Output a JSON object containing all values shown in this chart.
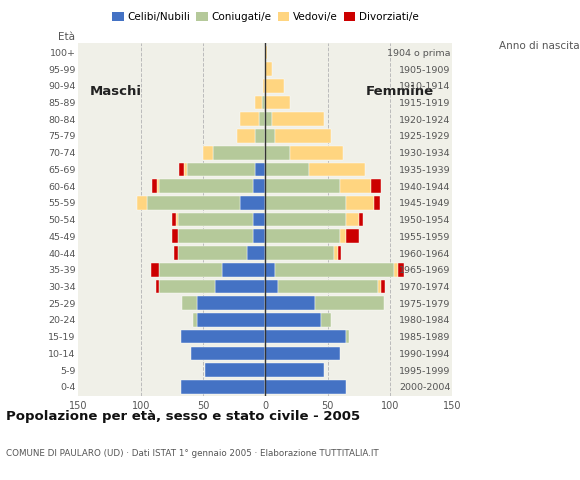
{
  "age_groups": [
    "0-4",
    "5-9",
    "10-14",
    "15-19",
    "20-24",
    "25-29",
    "30-34",
    "35-39",
    "40-44",
    "45-49",
    "50-54",
    "55-59",
    "60-64",
    "65-69",
    "70-74",
    "75-79",
    "80-84",
    "85-89",
    "90-94",
    "95-99",
    "100+"
  ],
  "birth_years": [
    "2000-2004",
    "1995-1999",
    "1990-1994",
    "1985-1989",
    "1980-1984",
    "1975-1979",
    "1970-1974",
    "1965-1969",
    "1960-1964",
    "1955-1959",
    "1950-1954",
    "1945-1949",
    "1940-1944",
    "1935-1939",
    "1930-1934",
    "1925-1929",
    "1920-1924",
    "1915-1919",
    "1910-1914",
    "1905-1909",
    "1904 o prima"
  ],
  "colors": {
    "celibi": "#4472C4",
    "coniugati": "#B5C99A",
    "vedovi": "#FFD580",
    "divorziati": "#CC0000"
  },
  "m_celibi": [
    68,
    48,
    60,
    68,
    55,
    55,
    40,
    35,
    15,
    10,
    10,
    20,
    10,
    8,
    0,
    0,
    0,
    0,
    0,
    0,
    0
  ],
  "m_coniugati": [
    0,
    0,
    0,
    0,
    3,
    12,
    45,
    50,
    55,
    60,
    60,
    75,
    75,
    55,
    42,
    8,
    5,
    3,
    0,
    0,
    0
  ],
  "m_vedovi": [
    0,
    0,
    0,
    0,
    0,
    0,
    0,
    0,
    0,
    0,
    2,
    8,
    2,
    2,
    8,
    15,
    15,
    5,
    2,
    0,
    0
  ],
  "m_divorziati": [
    0,
    0,
    0,
    0,
    0,
    0,
    3,
    7,
    3,
    5,
    3,
    0,
    4,
    4,
    0,
    0,
    0,
    0,
    0,
    0,
    0
  ],
  "f_celibi": [
    65,
    47,
    60,
    65,
    45,
    40,
    10,
    8,
    0,
    0,
    0,
    0,
    0,
    0,
    0,
    0,
    0,
    0,
    0,
    0,
    0
  ],
  "f_coniugati": [
    0,
    0,
    0,
    2,
    8,
    55,
    80,
    95,
    55,
    60,
    65,
    65,
    60,
    35,
    20,
    8,
    5,
    0,
    0,
    0,
    0
  ],
  "f_vedovi": [
    0,
    0,
    0,
    0,
    0,
    0,
    3,
    3,
    3,
    5,
    10,
    22,
    25,
    45,
    42,
    45,
    42,
    20,
    15,
    5,
    1
  ],
  "f_divorziati": [
    0,
    0,
    0,
    0,
    0,
    0,
    3,
    5,
    3,
    10,
    3,
    5,
    8,
    0,
    0,
    0,
    0,
    0,
    0,
    0,
    0
  ],
  "title": "Popolazione per età, sesso e stato civile - 2005",
  "subtitle": "COMUNE DI PAULARO (UD) · Dati ISTAT 1° gennaio 2005 · Elaborazione TUTTITALIA.IT",
  "xlim": 150,
  "plot_bg": "#F0F0E8",
  "fig_bg": "#FFFFFF"
}
